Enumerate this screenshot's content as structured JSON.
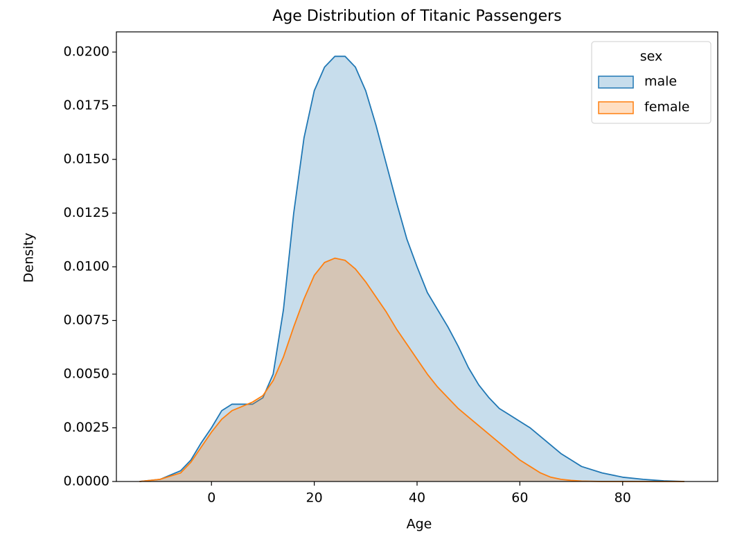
{
  "chart_data": {
    "type": "kde",
    "title": "Age Distribution of Titanic Passengers",
    "xlabel": "Age",
    "ylabel": "Density",
    "legend_title": "sex",
    "legend": "upper right",
    "x": [
      -14,
      -10,
      -6,
      -4,
      -2,
      0,
      2,
      4,
      6,
      8,
      10,
      12,
      14,
      16,
      18,
      20,
      22,
      24,
      26,
      28,
      30,
      32,
      34,
      36,
      38,
      40,
      42,
      44,
      46,
      48,
      50,
      52,
      54,
      56,
      58,
      60,
      62,
      64,
      66,
      68,
      70,
      72,
      76,
      80,
      84,
      88,
      92
    ],
    "series": [
      {
        "name": "male",
        "color": "#1f77b4",
        "values": [
          0,
          0.0001,
          0.0005,
          0.001,
          0.0018,
          0.0025,
          0.0033,
          0.0036,
          0.0036,
          0.0036,
          0.0039,
          0.005,
          0.008,
          0.0125,
          0.016,
          0.0182,
          0.0193,
          0.0198,
          0.0198,
          0.0193,
          0.0182,
          0.0166,
          0.0148,
          0.013,
          0.0113,
          0.01,
          0.0088,
          0.008,
          0.0072,
          0.0063,
          0.0053,
          0.0045,
          0.0039,
          0.0034,
          0.0031,
          0.0028,
          0.0025,
          0.0021,
          0.0017,
          0.0013,
          0.001,
          0.0007,
          0.0004,
          0.0002,
          0.0001,
          3e-05,
          0
        ]
      },
      {
        "name": "female",
        "color": "#ff7f0e",
        "values": [
          0,
          0.0001,
          0.0004,
          0.0009,
          0.0016,
          0.0023,
          0.0029,
          0.0033,
          0.0035,
          0.0037,
          0.004,
          0.0047,
          0.0058,
          0.0072,
          0.0085,
          0.0096,
          0.0102,
          0.0104,
          0.0103,
          0.0099,
          0.0093,
          0.0086,
          0.0079,
          0.0071,
          0.0064,
          0.0057,
          0.005,
          0.0044,
          0.0039,
          0.0034,
          0.003,
          0.0026,
          0.0022,
          0.0018,
          0.0014,
          0.001,
          0.0007,
          0.0004,
          0.0002,
          0.0001,
          5e-05,
          2e-05,
          0,
          0,
          0,
          0,
          0
        ]
      }
    ],
    "xlim": [
      -18.5,
      98.5
    ],
    "xticks": [
      0,
      20,
      40,
      60,
      80
    ],
    "ylim": [
      0,
      0.02094
    ],
    "yticks": [
      {
        "value": 0,
        "label": "0.0000"
      },
      {
        "value": 0.0025,
        "label": "0.0025"
      },
      {
        "value": 0.005,
        "label": "0.0050"
      },
      {
        "value": 0.0075,
        "label": "0.0075"
      },
      {
        "value": 0.01,
        "label": "0.0100"
      },
      {
        "value": 0.0125,
        "label": "0.0125"
      },
      {
        "value": 0.015,
        "label": "0.0150"
      },
      {
        "value": 0.0175,
        "label": "0.0175"
      },
      {
        "value": 0.02,
        "label": "0.0200"
      }
    ],
    "fill_opacity": 0.25,
    "grid": false
  }
}
